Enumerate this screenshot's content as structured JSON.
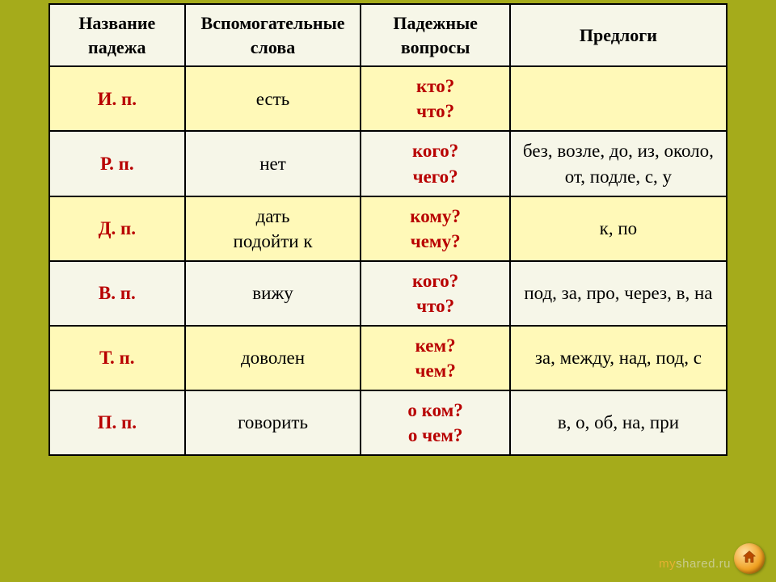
{
  "table": {
    "columns": [
      {
        "label": "Название\nпадежа",
        "width": "20%"
      },
      {
        "label": "Вспомогательные\nслова",
        "width": "26%"
      },
      {
        "label": "Падежные\nвопросы",
        "width": "22%"
      },
      {
        "label": "Предлоги",
        "width": "32%"
      }
    ],
    "rows": [
      {
        "case": "И.  п.",
        "helper": "есть",
        "questions": "кто?\nчто?",
        "prepositions": ""
      },
      {
        "case": "Р.  п.",
        "helper": "нет",
        "questions": "кого?\nчего?",
        "prepositions": "без, возле, до, из, около, от, подле, с, у"
      },
      {
        "case": "Д.  п.",
        "helper": "дать\nподойти к",
        "questions": "кому?\nчему?",
        "prepositions": "к, по"
      },
      {
        "case": "В.  п.",
        "helper": "вижу",
        "questions": "кого?\nчто?",
        "prepositions": "под, за, про, через, в, на"
      },
      {
        "case": "Т.  п.",
        "helper": "доволен",
        "questions": "кем?\nчем?",
        "prepositions": "за, между, над, под, с"
      },
      {
        "case": "П.  п.",
        "helper": "говорить",
        "questions": "о ком?\nо чем?",
        "prepositions": "в, о, об, на, при"
      }
    ],
    "header_bg": "#f6f6e8",
    "row_odd_bg": "#fff9b8",
    "row_even_bg": "#f6f6e8",
    "border_color": "#000000",
    "case_color": "#b80000",
    "question_color": "#b80000",
    "helper_color": "#000000",
    "prep_color": "#000000",
    "font_family": "Times New Roman",
    "header_fontsize_pt": 17,
    "cell_fontsize_pt": 17
  },
  "page_bg": "#a5ab1b",
  "watermark": {
    "prefix": "my",
    "suffix": "shared.ru"
  },
  "nav": {
    "icon": "home-icon",
    "color": "#b84a00"
  }
}
